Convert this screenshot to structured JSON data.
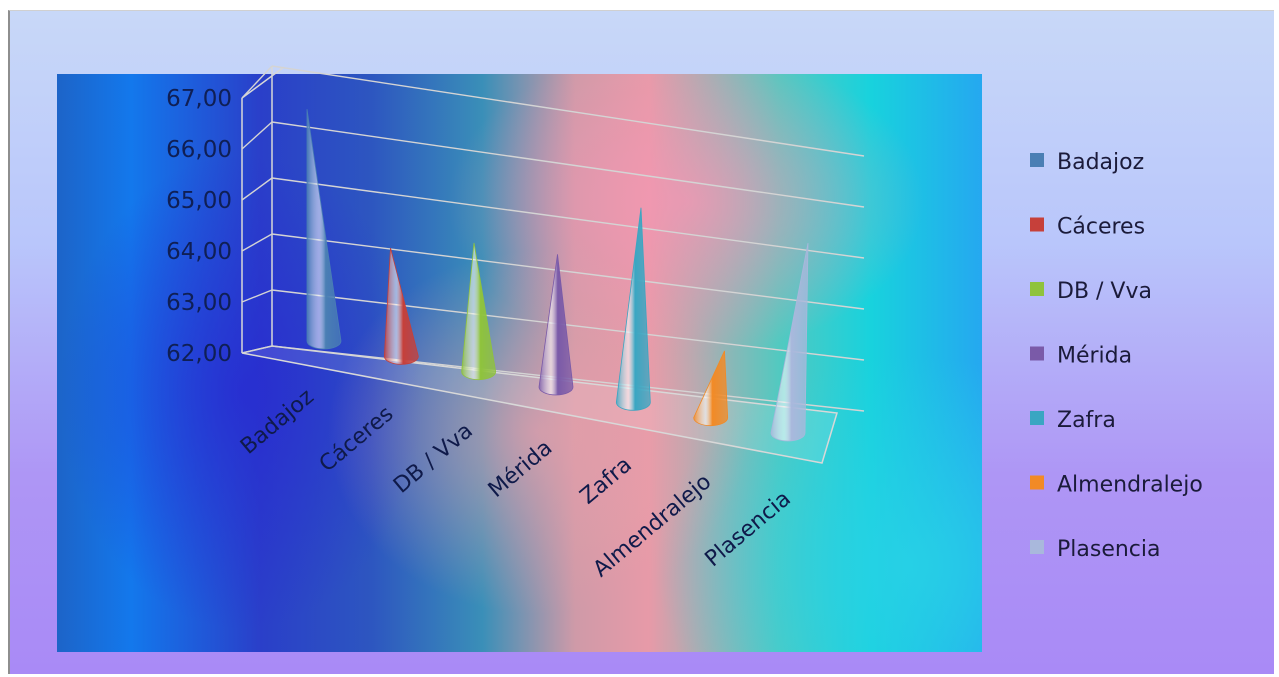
{
  "chart_data": {
    "type": "bar",
    "style": "3d-cone",
    "categories": [
      "Badajoz",
      "Cáceres",
      "DB / Vva",
      "Mérida",
      "Zafra",
      "Almendralejo",
      "Plasencia"
    ],
    "values": [
      66.1,
      63.9,
      64.3,
      64.4,
      65.6,
      63.2,
      65.6
    ],
    "ylim": [
      62,
      67
    ],
    "yticks": [
      "62,00",
      "63,00",
      "64,00",
      "65,00",
      "66,00",
      "67,00"
    ],
    "title": "",
    "xlabel": "",
    "ylabel": "",
    "grid": true,
    "legend": "right",
    "series_colors": [
      "#4a7fb4",
      "#c6403a",
      "#8fc33c",
      "#7a5aa8",
      "#3aa6c2",
      "#f28a25",
      "#a9b8dc"
    ]
  }
}
